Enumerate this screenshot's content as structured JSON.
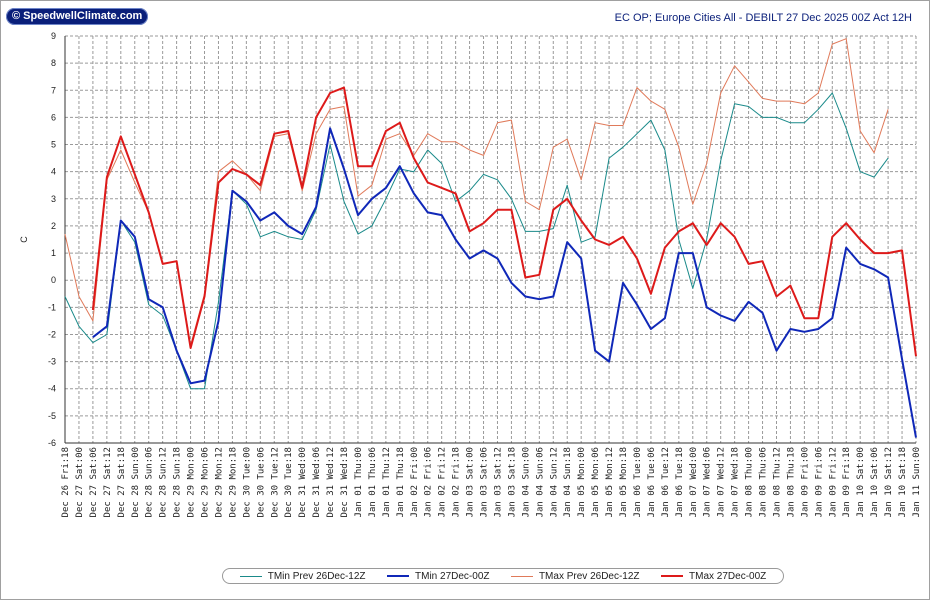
{
  "logo": {
    "copyright_symbol": "©",
    "text": "SpeedwellClimate.com"
  },
  "title": "EC OP; Europe Cities All - DEBILT 27 Dec 2025 00Z Act 12H",
  "chart_data": {
    "type": "line",
    "title": "EC OP; Europe Cities All - DEBILT 27 Dec 2025 00Z Act 12H",
    "ylabel": "C",
    "xlabel": "",
    "ylim": [
      -6,
      9
    ],
    "yticks": [
      -6,
      -5,
      -4,
      -3,
      -2,
      -1,
      0,
      1,
      2,
      3,
      4,
      5,
      6,
      7,
      8,
      9
    ],
    "grid": true,
    "legend_position": "bottom",
    "categories": [
      "Dec 26 Fri:18",
      "Dec 27 Sat:00",
      "Dec 27 Sat:06",
      "Dec 27 Sat:12",
      "Dec 27 Sat:18",
      "Dec 28 Sun:00",
      "Dec 28 Sun:06",
      "Dec 28 Sun:12",
      "Dec 28 Sun:18",
      "Dec 29 Mon:00",
      "Dec 29 Mon:06",
      "Dec 29 Mon:12",
      "Dec 29 Mon:18",
      "Dec 30 Tue:00",
      "Dec 30 Tue:06",
      "Dec 30 Tue:12",
      "Dec 30 Tue:18",
      "Dec 31 Wed:00",
      "Dec 31 Wed:06",
      "Dec 31 Wed:12",
      "Dec 31 Wed:18",
      "Jan 01 Thu:00",
      "Jan 01 Thu:06",
      "Jan 01 Thu:12",
      "Jan 01 Thu:18",
      "Jan 02 Fri:00",
      "Jan 02 Fri:06",
      "Jan 02 Fri:12",
      "Jan 02 Fri:18",
      "Jan 03 Sat:00",
      "Jan 03 Sat:06",
      "Jan 03 Sat:12",
      "Jan 03 Sat:18",
      "Jan 04 Sun:00",
      "Jan 04 Sun:06",
      "Jan 04 Sun:12",
      "Jan 04 Sun:18",
      "Jan 05 Mon:00",
      "Jan 05 Mon:06",
      "Jan 05 Mon:12",
      "Jan 05 Mon:18",
      "Jan 06 Tue:00",
      "Jan 06 Tue:06",
      "Jan 06 Tue:12",
      "Jan 06 Tue:18",
      "Jan 07 Wed:00",
      "Jan 07 Wed:06",
      "Jan 07 Wed:12",
      "Jan 07 Wed:18",
      "Jan 08 Thu:00",
      "Jan 08 Thu:06",
      "Jan 08 Thu:12",
      "Jan 08 Thu:18",
      "Jan 09 Fri:00",
      "Jan 09 Fri:06",
      "Jan 09 Fri:12",
      "Jan 09 Fri:18",
      "Jan 10 Sat:00",
      "Jan 10 Sat:06",
      "Jan 10 Sat:12",
      "Jan 10 Sat:18",
      "Jan 11 Sun:00"
    ],
    "series": [
      {
        "name": "TMin Prev 26Dec-12Z",
        "color": "#1a8a8a",
        "width": 1,
        "values": [
          -0.6,
          -1.7,
          -2.3,
          -2.0,
          2.2,
          1.4,
          -0.9,
          -1.3,
          -2.6,
          -4.0,
          -4.0,
          -0.8,
          3.3,
          2.8,
          1.6,
          1.8,
          1.6,
          1.5,
          2.6,
          5.0,
          2.9,
          1.7,
          2.0,
          3.0,
          4.1,
          4.0,
          4.8,
          4.3,
          2.9,
          3.3,
          3.9,
          3.7,
          3.0,
          1.8,
          1.8,
          1.9,
          3.5,
          1.4,
          1.6,
          4.5,
          4.9,
          5.4,
          5.9,
          4.8,
          1.5,
          -0.3,
          1.5,
          4.4,
          6.5,
          6.4,
          6.0,
          6.0,
          5.8,
          5.8,
          6.3,
          6.9,
          5.6,
          4.0,
          3.8,
          4.5,
          null,
          null
        ]
      },
      {
        "name": "TMin 27Dec-00Z",
        "color": "#1028b8",
        "width": 2,
        "values": [
          null,
          null,
          -2.1,
          -1.7,
          2.2,
          1.6,
          -0.7,
          -1.0,
          -2.6,
          -3.8,
          -3.7,
          -1.5,
          3.3,
          2.9,
          2.2,
          2.5,
          2.0,
          1.7,
          2.7,
          5.6,
          4.1,
          2.4,
          3.0,
          3.4,
          4.2,
          3.2,
          2.5,
          2.4,
          1.5,
          0.8,
          1.1,
          0.8,
          -0.1,
          -0.6,
          -0.7,
          -0.6,
          1.4,
          0.8,
          -2.6,
          -3.0,
          -0.1,
          -0.9,
          -1.8,
          -1.4,
          1.0,
          1.0,
          -1.0,
          -1.3,
          -1.5,
          -0.8,
          -1.2,
          -2.6,
          -1.8,
          -1.9,
          -1.8,
          -1.4,
          1.2,
          0.6,
          0.4,
          0.1,
          -2.9,
          -5.8
        ]
      },
      {
        "name": "TMax Prev 26Dec-12Z",
        "color": "#e07a5a",
        "width": 1,
        "values": [
          1.7,
          -0.6,
          -1.5,
          3.7,
          4.8,
          3.6,
          2.5,
          0.6,
          0.7,
          -2.4,
          -0.5,
          4.0,
          4.4,
          3.9,
          3.3,
          5.3,
          5.4,
          3.3,
          5.4,
          6.3,
          6.4,
          3.1,
          3.5,
          5.2,
          5.4,
          4.6,
          5.4,
          5.1,
          5.1,
          4.8,
          4.6,
          5.8,
          5.9,
          2.9,
          2.6,
          4.9,
          5.2,
          3.7,
          5.8,
          5.7,
          5.7,
          7.1,
          6.6,
          6.3,
          4.9,
          2.8,
          4.3,
          6.9,
          7.9,
          7.3,
          6.7,
          6.6,
          6.6,
          6.5,
          6.9,
          8.7,
          8.9,
          5.5,
          4.7,
          6.3,
          null,
          null
        ]
      },
      {
        "name": "TMax 27Dec-00Z",
        "color": "#dd1a1a",
        "width": 2,
        "values": [
          null,
          null,
          -1.1,
          3.8,
          5.3,
          3.9,
          2.5,
          0.6,
          0.7,
          -2.5,
          -0.6,
          3.6,
          4.1,
          3.9,
          3.5,
          5.4,
          5.5,
          3.4,
          6.0,
          6.9,
          7.1,
          4.2,
          4.2,
          5.5,
          5.8,
          4.5,
          3.6,
          3.4,
          3.2,
          1.8,
          2.1,
          2.6,
          2.6,
          0.1,
          0.2,
          2.6,
          3.0,
          2.2,
          1.5,
          1.3,
          1.6,
          0.8,
          -0.5,
          1.2,
          1.8,
          2.1,
          1.3,
          2.1,
          1.6,
          0.6,
          0.7,
          -0.6,
          -0.2,
          -1.4,
          -1.4,
          1.6,
          2.1,
          1.5,
          1.0,
          1.0,
          1.1,
          -2.8
        ]
      }
    ]
  }
}
